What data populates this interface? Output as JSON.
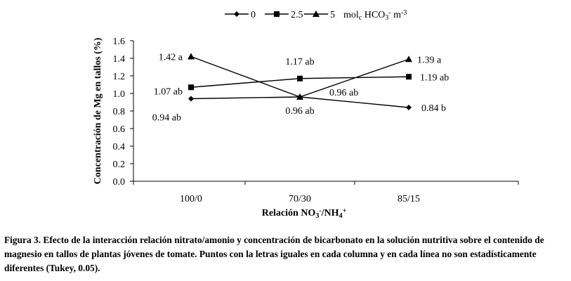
{
  "chart_data": {
    "type": "line",
    "categories": [
      "100/0",
      "70/30",
      "85/15"
    ],
    "ylabel": "Concentración de Mg en tallos (%)",
    "xlabel": "Relación NO3-/NH4+",
    "ylim": [
      0,
      1.6
    ],
    "yticks": [
      "0.0",
      "0.2",
      "0.4",
      "0.6",
      "0.8",
      "1.0",
      "1.2",
      "1.4",
      "1.6"
    ],
    "grid": false,
    "legend_position": "top",
    "legend_units": "molc HCO3- m-3",
    "series": [
      {
        "name": "0",
        "marker": "diamond",
        "values": [
          0.94,
          0.96,
          0.84
        ],
        "labels": [
          "0.94 ab",
          "0.96 ab",
          "0.84 b"
        ]
      },
      {
        "name": "2.5",
        "marker": "square",
        "values": [
          1.07,
          1.17,
          1.19
        ],
        "labels": [
          "1.07 ab",
          "1.17 ab",
          "1.19 ab"
        ]
      },
      {
        "name": "5",
        "marker": "triangle",
        "values": [
          1.42,
          0.96,
          1.39
        ],
        "labels": [
          "1.42 a",
          "0.96 ab",
          "1.39 a"
        ]
      }
    ]
  },
  "caption": "Figura 3. Efecto de la interacción relación nitrato/amonio y concentración de bicarbonato en la solución nutritiva sobre el contenido de magnesio en tallos de plantas jóvenes de tomate. Puntos con la letras iguales en cada columna y en cada línea no son estadísticamente diferentes (Tukey, 0.05)."
}
